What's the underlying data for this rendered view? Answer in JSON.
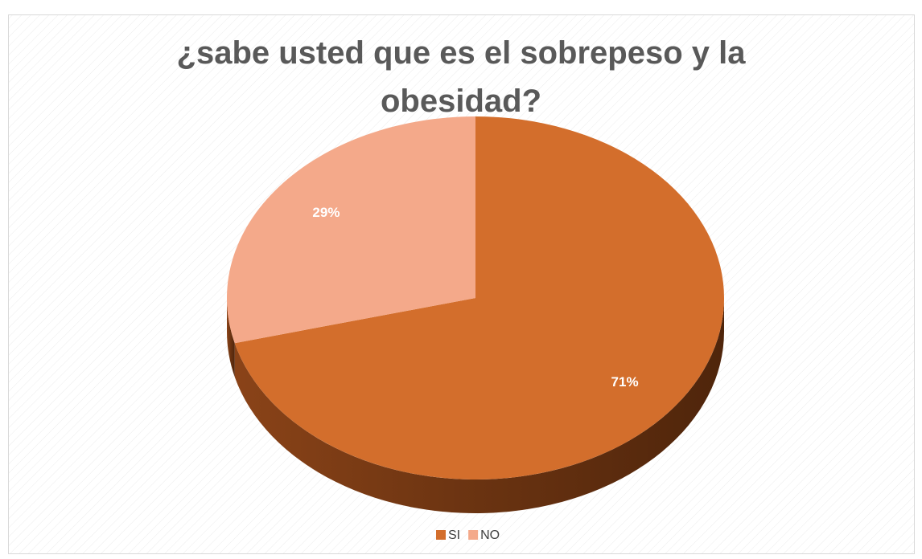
{
  "chart_data": {
    "type": "pie",
    "title": "¿sabe usted que es el sobrepeso y la obesidad?",
    "categories": [
      "SI",
      "NO"
    ],
    "values": [
      71,
      29
    ],
    "value_labels": [
      "71%",
      "29%"
    ],
    "colors": [
      "#d36e2c",
      "#f4a98a"
    ],
    "legend": "bottom"
  }
}
